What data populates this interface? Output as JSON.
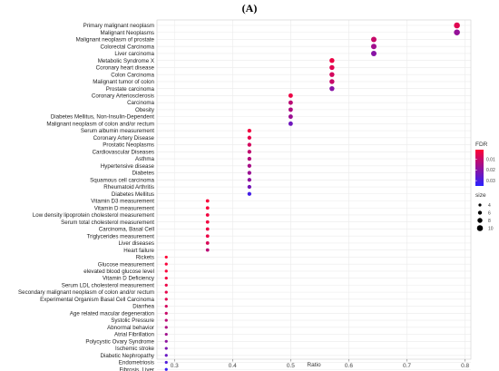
{
  "chart_data": {
    "type": "scatter",
    "panel_label": "(A)",
    "xlabel": "Ratio",
    "ylabel": "",
    "xlim": [
      0.27,
      0.81
    ],
    "x_ticks": [
      0.3,
      0.4,
      0.5,
      0.6,
      0.7,
      0.8
    ],
    "x_tick_labels": [
      "0.3",
      "0.4",
      "0.5",
      "0.6",
      "0.7",
      "0.8"
    ],
    "grid": true,
    "legend_position": "right",
    "color_legend": {
      "title": "FDR",
      "ticks": [
        0.01,
        0.02,
        0.03
      ],
      "tick_labels": [
        "0.01",
        "0.02",
        "0.03"
      ],
      "range": [
        0.001,
        0.035
      ],
      "low_color": "#ff0033",
      "high_color": "#2a22ff"
    },
    "size_legend": {
      "title": "size",
      "values": [
        4,
        6,
        8,
        10
      ],
      "labels": [
        "4",
        "6",
        "8",
        "10"
      ]
    },
    "points": [
      {
        "term": "Primary malignant neoplasm",
        "ratio": 0.786,
        "fdr": 0.006,
        "size": 10
      },
      {
        "term": "Malignant Neoplasms",
        "ratio": 0.786,
        "fdr": 0.018,
        "size": 10
      },
      {
        "term": "Malignant neoplasm of prostate",
        "ratio": 0.643,
        "fdr": 0.01,
        "size": 9
      },
      {
        "term": "Colorectal Carcinoma",
        "ratio": 0.643,
        "fdr": 0.016,
        "size": 9
      },
      {
        "term": "Liver carcinoma",
        "ratio": 0.643,
        "fdr": 0.02,
        "size": 9
      },
      {
        "term": "Metabolic Syndrome X",
        "ratio": 0.571,
        "fdr": 0.004,
        "size": 8
      },
      {
        "term": "Coronary heart disease",
        "ratio": 0.571,
        "fdr": 0.006,
        "size": 8
      },
      {
        "term": "Colon Carcinoma",
        "ratio": 0.571,
        "fdr": 0.008,
        "size": 8
      },
      {
        "term": "Malignant tumor of colon",
        "ratio": 0.571,
        "fdr": 0.01,
        "size": 8
      },
      {
        "term": "Prostate carcinoma",
        "ratio": 0.571,
        "fdr": 0.02,
        "size": 8
      },
      {
        "term": "Coronary Arteriosclerosis",
        "ratio": 0.5,
        "fdr": 0.004,
        "size": 7
      },
      {
        "term": "Carcinoma",
        "ratio": 0.5,
        "fdr": 0.012,
        "size": 7
      },
      {
        "term": "Obesity",
        "ratio": 0.5,
        "fdr": 0.014,
        "size": 7
      },
      {
        "term": "Diabetes Mellitus, Non-Insulin-Dependent",
        "ratio": 0.5,
        "fdr": 0.017,
        "size": 7
      },
      {
        "term": "Malignant neoplasm of colon and/or rectum",
        "ratio": 0.5,
        "fdr": 0.024,
        "size": 7
      },
      {
        "term": "Serum albumin measurement",
        "ratio": 0.429,
        "fdr": 0.003,
        "size": 6
      },
      {
        "term": "Coronary Artery Disease",
        "ratio": 0.429,
        "fdr": 0.005,
        "size": 6
      },
      {
        "term": "Prostatic Neoplasms",
        "ratio": 0.429,
        "fdr": 0.008,
        "size": 6
      },
      {
        "term": "Cardiovascular Diseases",
        "ratio": 0.429,
        "fdr": 0.011,
        "size": 6
      },
      {
        "term": "Asthma",
        "ratio": 0.429,
        "fdr": 0.013,
        "size": 6
      },
      {
        "term": "Hypertensive disease",
        "ratio": 0.429,
        "fdr": 0.015,
        "size": 6
      },
      {
        "term": "Diabetes",
        "ratio": 0.429,
        "fdr": 0.017,
        "size": 6
      },
      {
        "term": "Squamous cell carcinoma",
        "ratio": 0.429,
        "fdr": 0.019,
        "size": 6
      },
      {
        "term": "Rheumatoid Arthritis",
        "ratio": 0.429,
        "fdr": 0.023,
        "size": 6
      },
      {
        "term": "Diabetes Mellitus",
        "ratio": 0.429,
        "fdr": 0.031,
        "size": 6
      },
      {
        "term": "Vitamin D3 measurement",
        "ratio": 0.357,
        "fdr": 0.002,
        "size": 5
      },
      {
        "term": "Vitamin D measurement",
        "ratio": 0.357,
        "fdr": 0.002,
        "size": 5
      },
      {
        "term": "Low density lipoprotein cholesterol measurement",
        "ratio": 0.357,
        "fdr": 0.003,
        "size": 5
      },
      {
        "term": "Serum total cholesterol measurement",
        "ratio": 0.357,
        "fdr": 0.003,
        "size": 5
      },
      {
        "term": "Carcinoma, Basal Cell",
        "ratio": 0.357,
        "fdr": 0.004,
        "size": 5
      },
      {
        "term": "Triglycerides measurement",
        "ratio": 0.357,
        "fdr": 0.004,
        "size": 5
      },
      {
        "term": "Liver diseases",
        "ratio": 0.357,
        "fdr": 0.007,
        "size": 5
      },
      {
        "term": "Heart failure",
        "ratio": 0.357,
        "fdr": 0.012,
        "size": 5
      },
      {
        "term": "Rickets",
        "ratio": 0.286,
        "fdr": 0.001,
        "size": 4
      },
      {
        "term": "Glucose measurement",
        "ratio": 0.286,
        "fdr": 0.002,
        "size": 4
      },
      {
        "term": "elevated blood glucose level",
        "ratio": 0.286,
        "fdr": 0.002,
        "size": 4
      },
      {
        "term": "Vitamin D Deficiency",
        "ratio": 0.286,
        "fdr": 0.003,
        "size": 4
      },
      {
        "term": "Serum LDL cholesterol measurement",
        "ratio": 0.286,
        "fdr": 0.004,
        "size": 4
      },
      {
        "term": "Secondary malignant neoplasm of colon and/or rectum",
        "ratio": 0.286,
        "fdr": 0.005,
        "size": 4
      },
      {
        "term": "Experimental Organism Basal Cell Carcinoma",
        "ratio": 0.286,
        "fdr": 0.006,
        "size": 4
      },
      {
        "term": "Diarrhea",
        "ratio": 0.286,
        "fdr": 0.008,
        "size": 4
      },
      {
        "term": "Age related macular degeneration",
        "ratio": 0.286,
        "fdr": 0.01,
        "size": 4
      },
      {
        "term": "Systolic Pressure",
        "ratio": 0.286,
        "fdr": 0.012,
        "size": 4
      },
      {
        "term": "Abnormal behavior",
        "ratio": 0.286,
        "fdr": 0.014,
        "size": 4
      },
      {
        "term": "Atrial Fibrillation",
        "ratio": 0.286,
        "fdr": 0.016,
        "size": 4
      },
      {
        "term": "Polycystic Ovary Syndrome",
        "ratio": 0.286,
        "fdr": 0.019,
        "size": 4
      },
      {
        "term": "Ischemic stroke",
        "ratio": 0.286,
        "fdr": 0.022,
        "size": 4
      },
      {
        "term": "Diabetic Nephropathy",
        "ratio": 0.286,
        "fdr": 0.025,
        "size": 4
      },
      {
        "term": "Endometriosis",
        "ratio": 0.286,
        "fdr": 0.029,
        "size": 4
      },
      {
        "term": "Fibrosis, Liver",
        "ratio": 0.286,
        "fdr": 0.033,
        "size": 4
      }
    ]
  }
}
